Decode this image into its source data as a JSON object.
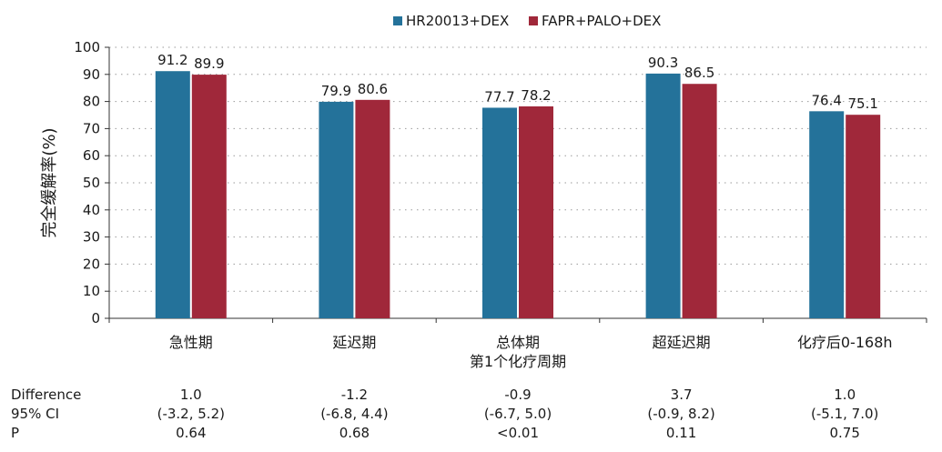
{
  "chart_data": {
    "type": "bar",
    "ylabel": "完全缓解率(%)",
    "ylim": [
      0,
      100
    ],
    "yticks": [
      0,
      10,
      20,
      30,
      40,
      50,
      60,
      70,
      80,
      90,
      100
    ],
    "grid": "horizontal dotted",
    "legend_position": "top-right",
    "categories": [
      [
        "急性期"
      ],
      [
        "延迟期"
      ],
      [
        "总体期",
        "第1个化疗周期"
      ],
      [
        "超延迟期"
      ],
      [
        "化疗后0-168h"
      ]
    ],
    "series": [
      {
        "name": "HR20013+DEX",
        "color": "#24729A",
        "values": [
          91.2,
          79.9,
          77.7,
          90.3,
          76.4
        ]
      },
      {
        "name": "FAPR+PALO+DEX",
        "color": "#A0283A",
        "values": [
          89.9,
          80.6,
          78.2,
          86.5,
          75.1
        ]
      }
    ]
  },
  "stats_table": {
    "row_labels": [
      "Difference",
      "95% CI",
      "P"
    ],
    "columns": [
      [
        "1.0",
        "(-3.2, 5.2)",
        "0.64"
      ],
      [
        "-1.2",
        "(-6.8, 4.4)",
        "0.68"
      ],
      [
        "-0.9",
        "(-6.7, 5.0)",
        "<0.01"
      ],
      [
        "3.7",
        "(-0.9, 8.2)",
        "0.11"
      ],
      [
        "1.0",
        "(-5.1, 7.0)",
        "0.75"
      ]
    ]
  }
}
